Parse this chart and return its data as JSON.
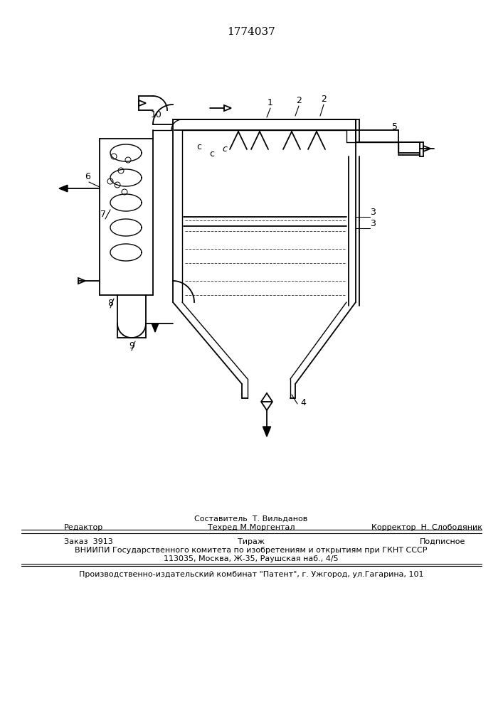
{
  "patent_number": "1774037",
  "background_color": "#ffffff",
  "line_color": "#000000",
  "title_fontsize": 11,
  "label_fontsize": 9,
  "footer_lines": [
    {
      "left": "Редактор",
      "center": "Составитель  Т. Вильданов",
      "right": ""
    },
    {
      "left": "",
      "center": "Техред М.Моргентал",
      "right": "Корректор  Н. Слободяник"
    }
  ],
  "footer2_lines": [
    {
      "left": "Заказ  3913",
      "center": "Тираж",
      "right": "Подписное"
    },
    {
      "center": "ВНИИПИ Государственного комитета по изобретениям и открытиям при ГКНТ СССР"
    },
    {
      "center": "113035, Москва, Ж-35, Раушская наб., 4/5"
    }
  ],
  "footer3": "Производственно-издательский комбинат \"Патент\", г. Ужгород, ул.Гагарина, 101"
}
